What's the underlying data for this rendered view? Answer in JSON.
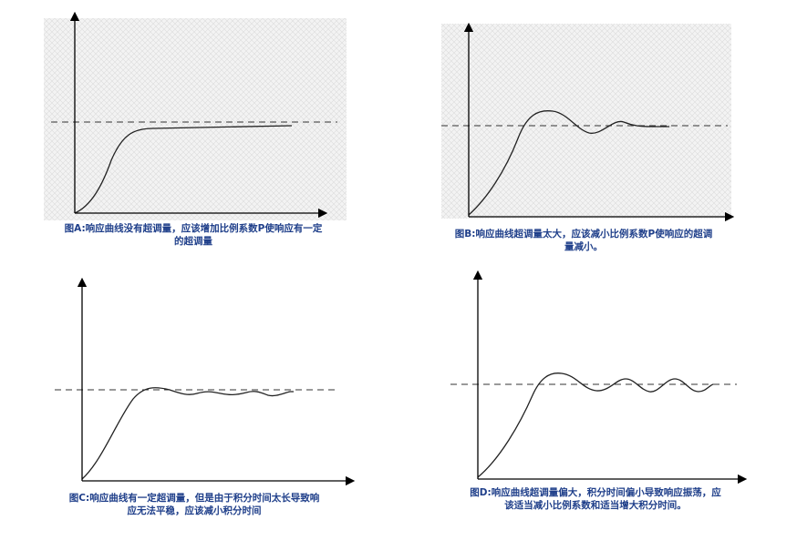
{
  "panels": [
    {
      "id": "a",
      "caption_line1": "图A:响应曲线没有超调量，应该增加比例系数P使响应有一定",
      "caption_line2": "的超调量"
    },
    {
      "id": "b",
      "caption_line1": "图B:响应曲线超调量太大，应该减小比例系数P使响应的超调",
      "caption_line2": "量减小。"
    },
    {
      "id": "c",
      "caption_line1": "图C:响应曲线有一定超调量，但是由于积分时间太长导致响",
      "caption_line2": "应无法平稳，应该减小积分时间"
    },
    {
      "id": "d",
      "caption_line1": "图D:响应曲线超调量偏大，积分时间偏小导致响应振荡，应",
      "caption_line2": "该适当减小比例系数和适当增大积分时间。"
    }
  ],
  "colors": {
    "caption": "#1f3f8a",
    "axis": "#000000",
    "curve": "#222222",
    "setpoint": "#333333",
    "hatch_bg": "#f3f3f3",
    "hatch_line": "#dcdcdc"
  }
}
